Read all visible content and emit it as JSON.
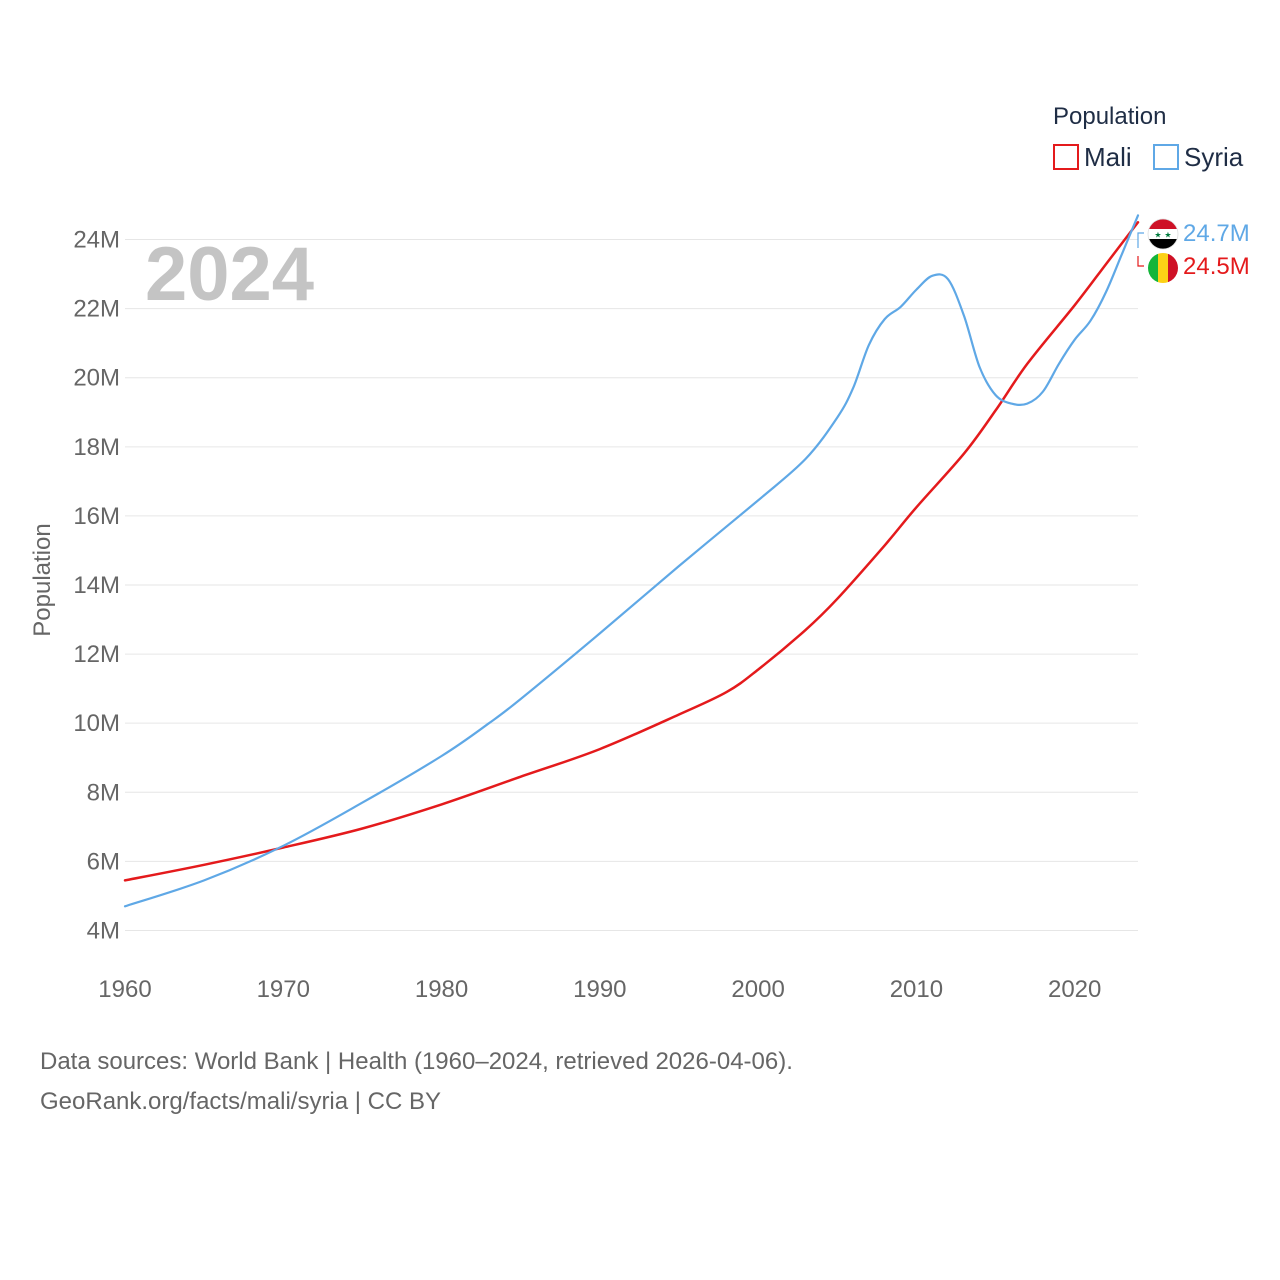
{
  "chart_data": {
    "type": "line",
    "title": "2024",
    "ylabel": "Population",
    "xlabel": "",
    "legend_title": "Population",
    "legend_position": "top-right",
    "xlim": [
      1960,
      2024
    ],
    "ylim": [
      3000000,
      25000000
    ],
    "x_ticks": [
      1960,
      1970,
      1980,
      1990,
      2000,
      2010,
      2020
    ],
    "x_tick_labels": [
      "1960",
      "1970",
      "1980",
      "1990",
      "2000",
      "2010",
      "2020"
    ],
    "y_ticks": [
      4000000,
      6000000,
      8000000,
      10000000,
      12000000,
      14000000,
      16000000,
      18000000,
      20000000,
      22000000,
      24000000
    ],
    "y_tick_labels": [
      "4M",
      "6M",
      "8M",
      "10M",
      "12M",
      "14M",
      "16M",
      "18M",
      "20M",
      "22M",
      "24M"
    ],
    "grid": true,
    "series": [
      {
        "name": "Mali",
        "color": "#e41a1c",
        "flag": "mali-flag",
        "end_label": "24.5M",
        "x": [
          1960,
          1965,
          1970,
          1975,
          1980,
          1985,
          1990,
          1995,
          1998,
          2000,
          2003,
          2005,
          2008,
          2010,
          2013,
          2015,
          2017,
          2020,
          2022,
          2024
        ],
        "values": [
          5450000,
          5900000,
          6400000,
          6950000,
          7650000,
          8450000,
          9250000,
          10250000,
          10900000,
          11550000,
          12700000,
          13600000,
          15150000,
          16250000,
          17800000,
          19050000,
          20400000,
          22100000,
          23300000,
          24500000
        ]
      },
      {
        "name": "Syria",
        "color": "#5fa8e6",
        "flag": "syria-flag",
        "end_label": "24.7M",
        "x": [
          1960,
          1965,
          1970,
          1975,
          1980,
          1983,
          1985,
          1990,
          1995,
          2000,
          2003,
          2005,
          2006,
          2007,
          2008,
          2009,
          2010,
          2011,
          2012,
          2013,
          2014,
          2015,
          2016,
          2017,
          2018,
          2019,
          2020,
          2021,
          2022,
          2023,
          2024
        ],
        "values": [
          4700000,
          5450000,
          6450000,
          7700000,
          9050000,
          10000000,
          10700000,
          12600000,
          14550000,
          16450000,
          17650000,
          18850000,
          19700000,
          20950000,
          21700000,
          22050000,
          22550000,
          22950000,
          22850000,
          21800000,
          20300000,
          19500000,
          19250000,
          19250000,
          19600000,
          20400000,
          21100000,
          21650000,
          22500000,
          23600000,
          24700000
        ]
      }
    ]
  },
  "footer": {
    "line1": "Data sources: World Bank | Health (1960–2024, retrieved 2026-04-06).",
    "line2": "GeoRank.org/facts/mali/syria | CC BY"
  }
}
